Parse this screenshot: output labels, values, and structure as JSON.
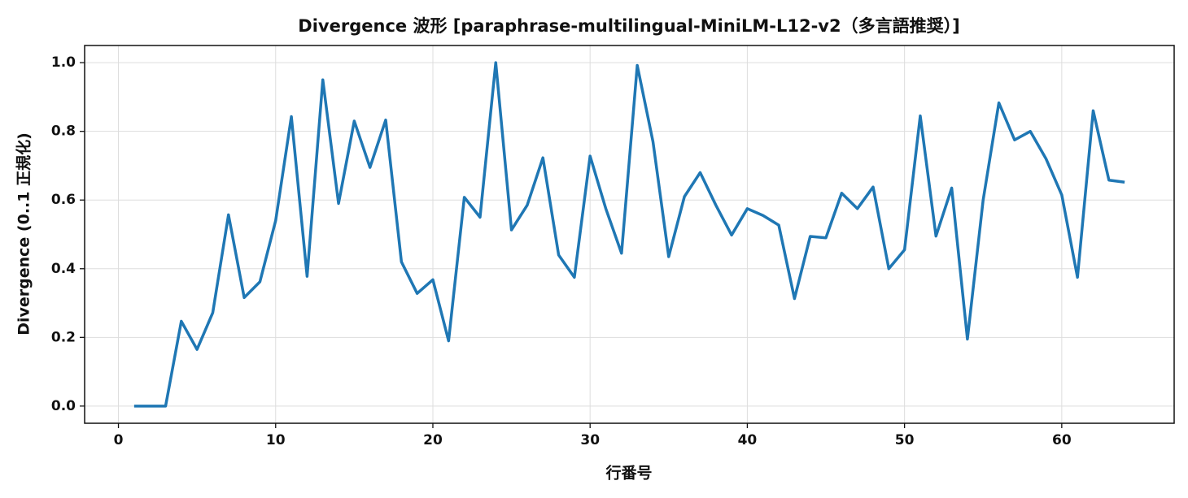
{
  "chart_data": {
    "type": "line",
    "title": "Divergence 波形 [paraphrase-multilingual-MiniLM-L12-v2（多言語推奨）]",
    "x_label": "行番号",
    "y_label": "Divergence (0..1 正規化)",
    "x": [
      1,
      2,
      3,
      4,
      5,
      6,
      7,
      8,
      9,
      10,
      11,
      12,
      13,
      14,
      15,
      16,
      17,
      18,
      19,
      20,
      21,
      22,
      23,
      24,
      25,
      26,
      27,
      28,
      29,
      30,
      31,
      32,
      33,
      34,
      35,
      36,
      37,
      38,
      39,
      40,
      41,
      42,
      43,
      44,
      45,
      46,
      47,
      48,
      49,
      50,
      51,
      52,
      53,
      54,
      55,
      56,
      57,
      58,
      59,
      60,
      61,
      62,
      63,
      64
    ],
    "series": [
      {
        "name": "Divergence",
        "color": "#1f77b4",
        "values": [
          0,
          0,
          0,
          0.247,
          0.165,
          0.272,
          0.557,
          0.316,
          0.362,
          0.54,
          0.843,
          0.378,
          0.95,
          0.59,
          0.83,
          0.695,
          0.833,
          0.42,
          0.328,
          0.368,
          0.19,
          0.608,
          0.55,
          1.0,
          0.513,
          0.585,
          0.723,
          0.44,
          0.375,
          0.728,
          0.575,
          0.445,
          0.992,
          0.77,
          0.435,
          0.61,
          0.68,
          0.585,
          0.498,
          0.575,
          0.555,
          0.527,
          0.313,
          0.494,
          0.49,
          0.62,
          0.575,
          0.638,
          0.4,
          0.455,
          0.845,
          0.495,
          0.635,
          0.195,
          0.6,
          0.883,
          0.775,
          0.8,
          0.72,
          0.615,
          0.375,
          0.86,
          0.658,
          0.652
        ]
      }
    ],
    "xlim": [
      -2.15,
      67.15
    ],
    "ylim": [
      -0.05,
      1.05
    ],
    "xticks": [
      0,
      10,
      20,
      30,
      40,
      50,
      60
    ],
    "yticks": [
      {
        "value": 0,
        "label": "0.0"
      },
      0.2,
      0.4,
      0.6,
      0.8,
      {
        "value": 1,
        "label": "1.0"
      }
    ],
    "grid": true
  }
}
